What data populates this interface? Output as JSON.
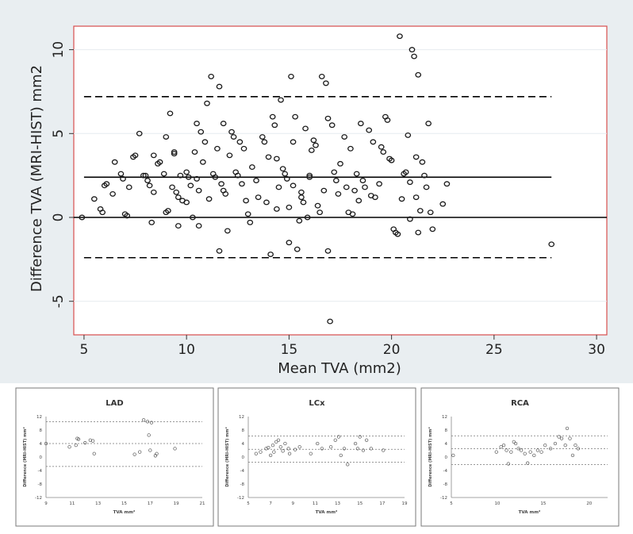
{
  "chart_data": [
    {
      "type": "scatter",
      "title": "",
      "xlabel": "Mean TVA (mm2)",
      "ylabel": "Difference TVA (MRI-HIST) mm2",
      "xlim": [
        4.5,
        30.5
      ],
      "ylim": [
        -7,
        11.4
      ],
      "xticks": [
        5,
        10,
        15,
        20,
        25,
        30
      ],
      "yticks": [
        -5,
        0,
        5,
        10
      ],
      "hlines": {
        "zero": 0,
        "mean": 2.4,
        "upper": 7.2,
        "lower": -2.4
      },
      "grid": true,
      "legend": "none",
      "colors": {
        "background": "#e9eef1",
        "plot_bg": "#ffffff",
        "border": "#d84e4e",
        "points": "#1a1a1a",
        "lines": "#000000"
      },
      "points": [
        {
          "x": 4.9,
          "y": 0.0
        },
        {
          "x": 5.5,
          "y": 1.1
        },
        {
          "x": 5.8,
          "y": 0.5
        },
        {
          "x": 5.9,
          "y": 0.3
        },
        {
          "x": 6.0,
          "y": 1.9
        },
        {
          "x": 6.1,
          "y": 2.0
        },
        {
          "x": 6.4,
          "y": 1.4
        },
        {
          "x": 6.5,
          "y": 3.3
        },
        {
          "x": 6.8,
          "y": 2.6
        },
        {
          "x": 6.9,
          "y": 2.3
        },
        {
          "x": 7.0,
          "y": 0.2
        },
        {
          "x": 7.1,
          "y": 0.1
        },
        {
          "x": 7.2,
          "y": 1.8
        },
        {
          "x": 7.4,
          "y": 3.6
        },
        {
          "x": 7.5,
          "y": 3.7
        },
        {
          "x": 7.7,
          "y": 5.0
        },
        {
          "x": 7.9,
          "y": 2.5
        },
        {
          "x": 8.0,
          "y": 2.5
        },
        {
          "x": 8.1,
          "y": 2.2
        },
        {
          "x": 8.2,
          "y": 1.9
        },
        {
          "x": 8.3,
          "y": -0.3
        },
        {
          "x": 8.4,
          "y": 1.5
        },
        {
          "x": 8.4,
          "y": 3.7
        },
        {
          "x": 8.6,
          "y": 3.2
        },
        {
          "x": 8.7,
          "y": 3.3
        },
        {
          "x": 8.9,
          "y": 2.6
        },
        {
          "x": 9.0,
          "y": 4.8
        },
        {
          "x": 9.0,
          "y": 0.3
        },
        {
          "x": 9.1,
          "y": 0.4
        },
        {
          "x": 9.2,
          "y": 6.2
        },
        {
          "x": 9.3,
          "y": 1.8
        },
        {
          "x": 9.4,
          "y": 3.9
        },
        {
          "x": 9.4,
          "y": 3.8
        },
        {
          "x": 9.5,
          "y": 1.5
        },
        {
          "x": 9.6,
          "y": -0.5
        },
        {
          "x": 9.6,
          "y": 1.2
        },
        {
          "x": 9.7,
          "y": 2.5
        },
        {
          "x": 9.8,
          "y": 1.0
        },
        {
          "x": 10.0,
          "y": 2.7
        },
        {
          "x": 10.0,
          "y": 0.9
        },
        {
          "x": 10.1,
          "y": 2.4
        },
        {
          "x": 10.2,
          "y": 1.9
        },
        {
          "x": 10.3,
          "y": 0.0
        },
        {
          "x": 10.4,
          "y": 3.9
        },
        {
          "x": 10.5,
          "y": 5.6
        },
        {
          "x": 10.5,
          "y": 2.3
        },
        {
          "x": 10.6,
          "y": 1.6
        },
        {
          "x": 10.6,
          "y": -0.5
        },
        {
          "x": 10.7,
          "y": 5.1
        },
        {
          "x": 10.8,
          "y": 3.3
        },
        {
          "x": 10.9,
          "y": 4.5
        },
        {
          "x": 11.0,
          "y": 6.8
        },
        {
          "x": 11.1,
          "y": 1.1
        },
        {
          "x": 11.2,
          "y": 8.4
        },
        {
          "x": 11.3,
          "y": 2.6
        },
        {
          "x": 11.4,
          "y": 2.4
        },
        {
          "x": 11.5,
          "y": 4.1
        },
        {
          "x": 11.6,
          "y": 7.8
        },
        {
          "x": 11.6,
          "y": -2.0
        },
        {
          "x": 11.7,
          "y": 2.0
        },
        {
          "x": 11.8,
          "y": 5.6
        },
        {
          "x": 11.8,
          "y": 1.6
        },
        {
          "x": 11.9,
          "y": 1.4
        },
        {
          "x": 12.0,
          "y": -0.8
        },
        {
          "x": 12.1,
          "y": 3.7
        },
        {
          "x": 12.2,
          "y": 5.1
        },
        {
          "x": 12.3,
          "y": 4.8
        },
        {
          "x": 12.4,
          "y": 2.7
        },
        {
          "x": 12.5,
          "y": 2.5
        },
        {
          "x": 12.6,
          "y": 4.5
        },
        {
          "x": 12.7,
          "y": 2.0
        },
        {
          "x": 12.8,
          "y": 4.1
        },
        {
          "x": 12.9,
          "y": 1.0
        },
        {
          "x": 13.0,
          "y": 0.2
        },
        {
          "x": 13.1,
          "y": -0.3
        },
        {
          "x": 13.2,
          "y": 3.0
        },
        {
          "x": 13.4,
          "y": 2.2
        },
        {
          "x": 13.5,
          "y": 1.2
        },
        {
          "x": 13.7,
          "y": 4.8
        },
        {
          "x": 13.8,
          "y": 4.5
        },
        {
          "x": 13.9,
          "y": 0.9
        },
        {
          "x": 14.0,
          "y": 3.6
        },
        {
          "x": 14.1,
          "y": -2.2
        },
        {
          "x": 14.2,
          "y": 6.0
        },
        {
          "x": 14.3,
          "y": 5.5
        },
        {
          "x": 14.4,
          "y": 3.5
        },
        {
          "x": 14.4,
          "y": 0.5
        },
        {
          "x": 14.5,
          "y": 1.8
        },
        {
          "x": 14.6,
          "y": 7.0
        },
        {
          "x": 14.7,
          "y": 2.9
        },
        {
          "x": 14.8,
          "y": 2.6
        },
        {
          "x": 14.9,
          "y": 2.3
        },
        {
          "x": 15.0,
          "y": -1.5
        },
        {
          "x": 15.0,
          "y": 0.6
        },
        {
          "x": 15.1,
          "y": 8.4
        },
        {
          "x": 15.2,
          "y": 4.5
        },
        {
          "x": 15.2,
          "y": 1.9
        },
        {
          "x": 15.3,
          "y": 6.0
        },
        {
          "x": 15.4,
          "y": -1.9
        },
        {
          "x": 15.5,
          "y": -0.2
        },
        {
          "x": 15.6,
          "y": 1.5
        },
        {
          "x": 15.6,
          "y": 1.2
        },
        {
          "x": 15.7,
          "y": 0.9
        },
        {
          "x": 15.8,
          "y": 5.3
        },
        {
          "x": 15.9,
          "y": 0.0
        },
        {
          "x": 16.0,
          "y": 2.5
        },
        {
          "x": 16.0,
          "y": 2.4
        },
        {
          "x": 16.1,
          "y": 4.0
        },
        {
          "x": 16.2,
          "y": 4.6
        },
        {
          "x": 16.3,
          "y": 4.3
        },
        {
          "x": 16.4,
          "y": 0.7
        },
        {
          "x": 16.5,
          "y": 0.3
        },
        {
          "x": 16.6,
          "y": 8.4
        },
        {
          "x": 16.7,
          "y": 1.6
        },
        {
          "x": 16.8,
          "y": 8.0
        },
        {
          "x": 16.9,
          "y": 5.9
        },
        {
          "x": 16.9,
          "y": -2.0
        },
        {
          "x": 17.0,
          "y": -6.2
        },
        {
          "x": 17.1,
          "y": 5.5
        },
        {
          "x": 17.2,
          "y": 2.7
        },
        {
          "x": 17.3,
          "y": 2.2
        },
        {
          "x": 17.4,
          "y": 1.4
        },
        {
          "x": 17.5,
          "y": 3.2
        },
        {
          "x": 17.7,
          "y": 4.8
        },
        {
          "x": 17.8,
          "y": 1.8
        },
        {
          "x": 17.9,
          "y": 0.3
        },
        {
          "x": 18.0,
          "y": 4.1
        },
        {
          "x": 18.1,
          "y": 0.2
        },
        {
          "x": 18.2,
          "y": 1.6
        },
        {
          "x": 18.3,
          "y": 2.6
        },
        {
          "x": 18.4,
          "y": 1.0
        },
        {
          "x": 18.5,
          "y": 5.6
        },
        {
          "x": 18.6,
          "y": 2.2
        },
        {
          "x": 18.7,
          "y": 1.8
        },
        {
          "x": 18.9,
          "y": 5.2
        },
        {
          "x": 19.0,
          "y": 1.3
        },
        {
          "x": 19.1,
          "y": 4.5
        },
        {
          "x": 19.2,
          "y": 1.2
        },
        {
          "x": 19.4,
          "y": 2.0
        },
        {
          "x": 19.5,
          "y": 4.2
        },
        {
          "x": 19.6,
          "y": 3.9
        },
        {
          "x": 19.7,
          "y": 6.0
        },
        {
          "x": 19.8,
          "y": 5.8
        },
        {
          "x": 19.9,
          "y": 3.5
        },
        {
          "x": 20.0,
          "y": 3.4
        },
        {
          "x": 20.1,
          "y": -0.7
        },
        {
          "x": 20.2,
          "y": -0.9
        },
        {
          "x": 20.3,
          "y": -1.0
        },
        {
          "x": 20.4,
          "y": 10.8
        },
        {
          "x": 20.5,
          "y": 1.1
        },
        {
          "x": 20.6,
          "y": 2.6
        },
        {
          "x": 20.7,
          "y": 2.7
        },
        {
          "x": 20.8,
          "y": 4.9
        },
        {
          "x": 20.9,
          "y": 2.1
        },
        {
          "x": 21.0,
          "y": 10.0
        },
        {
          "x": 21.1,
          "y": 9.6
        },
        {
          "x": 21.2,
          "y": 3.6
        },
        {
          "x": 21.3,
          "y": 8.5
        },
        {
          "x": 21.4,
          "y": 0.4
        },
        {
          "x": 21.5,
          "y": 3.3
        },
        {
          "x": 21.6,
          "y": 2.5
        },
        {
          "x": 21.7,
          "y": 1.8
        },
        {
          "x": 21.8,
          "y": 5.6
        },
        {
          "x": 21.9,
          "y": 0.3
        },
        {
          "x": 22.0,
          "y": -0.7
        },
        {
          "x": 22.5,
          "y": 0.8
        },
        {
          "x": 22.7,
          "y": 2.0
        },
        {
          "x": 20.9,
          "y": -0.1
        },
        {
          "x": 21.2,
          "y": 1.2
        },
        {
          "x": 21.3,
          "y": -0.9
        },
        {
          "x": 27.8,
          "y": -1.6
        }
      ]
    },
    {
      "type": "scatter",
      "title": "LAD",
      "xlabel": "TVA mm²",
      "ylabel": "Difference (MRI-HIST) mm²",
      "xlim": [
        9,
        21
      ],
      "ylim": [
        -12,
        12
      ],
      "xticks": [
        9,
        11,
        13,
        15,
        17,
        19,
        21
      ],
      "yticks": [
        -12,
        -8,
        -4,
        0,
        4,
        8,
        12
      ],
      "hlines": {
        "mean": 4.0,
        "upper": 10.5,
        "lower": -2.8
      },
      "points": [
        {
          "x": 9.0,
          "y": 4.0
        },
        {
          "x": 10.8,
          "y": 3.0
        },
        {
          "x": 11.3,
          "y": 3.5
        },
        {
          "x": 11.4,
          "y": 5.5
        },
        {
          "x": 11.5,
          "y": 5.3
        },
        {
          "x": 12.0,
          "y": 4.2
        },
        {
          "x": 12.4,
          "y": 5.0
        },
        {
          "x": 12.6,
          "y": 4.8
        },
        {
          "x": 12.7,
          "y": 1.0
        },
        {
          "x": 15.8,
          "y": 0.8
        },
        {
          "x": 16.2,
          "y": 1.5
        },
        {
          "x": 16.5,
          "y": 11.0
        },
        {
          "x": 16.8,
          "y": 10.5
        },
        {
          "x": 16.9,
          "y": 6.5
        },
        {
          "x": 17.0,
          "y": 2.0
        },
        {
          "x": 17.1,
          "y": 10.2
        },
        {
          "x": 17.4,
          "y": 0.4
        },
        {
          "x": 17.5,
          "y": 1.0
        },
        {
          "x": 18.9,
          "y": 2.5
        }
      ]
    },
    {
      "type": "scatter",
      "title": "LCx",
      "xlabel": "TVA mm²",
      "ylabel": "Difference (MRI-HIST) mm²",
      "xlim": [
        5,
        19
      ],
      "ylim": [
        -12,
        12
      ],
      "xticks": [
        5,
        7,
        9,
        11,
        13,
        15,
        17,
        19
      ],
      "yticks": [
        -12,
        -8,
        -4,
        0,
        4,
        8,
        12
      ],
      "hlines": {
        "mean": 2.3,
        "upper": 6.2,
        "lower": -1.5
      },
      "points": [
        {
          "x": 5.7,
          "y": 1.0
        },
        {
          "x": 6.1,
          "y": 1.5
        },
        {
          "x": 6.6,
          "y": 2.5
        },
        {
          "x": 6.8,
          "y": 2.8
        },
        {
          "x": 7.0,
          "y": 0.5
        },
        {
          "x": 7.2,
          "y": 3.5
        },
        {
          "x": 7.3,
          "y": 1.5
        },
        {
          "x": 7.5,
          "y": 4.5
        },
        {
          "x": 7.7,
          "y": 5.0
        },
        {
          "x": 7.9,
          "y": 3.0
        },
        {
          "x": 8.1,
          "y": 1.8
        },
        {
          "x": 8.3,
          "y": 4.0
        },
        {
          "x": 8.6,
          "y": 2.5
        },
        {
          "x": 8.7,
          "y": 1.0
        },
        {
          "x": 9.2,
          "y": 2.2
        },
        {
          "x": 9.6,
          "y": 3.0
        },
        {
          "x": 10.6,
          "y": 1.0
        },
        {
          "x": 11.2,
          "y": 4.0
        },
        {
          "x": 11.6,
          "y": 2.5
        },
        {
          "x": 12.4,
          "y": 3.0
        },
        {
          "x": 12.8,
          "y": 5.0
        },
        {
          "x": 13.1,
          "y": 6.0
        },
        {
          "x": 13.3,
          "y": 0.5
        },
        {
          "x": 13.6,
          "y": 2.5
        },
        {
          "x": 13.9,
          "y": -2.2
        },
        {
          "x": 14.6,
          "y": 4.0
        },
        {
          "x": 14.8,
          "y": 2.5
        },
        {
          "x": 15.0,
          "y": 6.0
        },
        {
          "x": 15.3,
          "y": 2.0
        },
        {
          "x": 15.6,
          "y": 5.0
        },
        {
          "x": 16.0,
          "y": 2.5
        },
        {
          "x": 17.1,
          "y": 2.0
        }
      ]
    },
    {
      "type": "scatter",
      "title": "RCA",
      "xlabel": "TVA mm²",
      "ylabel": "Difference (MRI-HIST) mm²",
      "xlim": [
        5,
        22
      ],
      "ylim": [
        -12,
        12
      ],
      "xticks": [
        5,
        10,
        15,
        20
      ],
      "yticks": [
        -12,
        -8,
        -4,
        0,
        4,
        8,
        12
      ],
      "hlines": {
        "mean": 2.5,
        "upper": 6.3,
        "lower": -2.2
      },
      "points": [
        {
          "x": 5.2,
          "y": 0.5
        },
        {
          "x": 9.9,
          "y": 1.5
        },
        {
          "x": 10.4,
          "y": 3.0
        },
        {
          "x": 10.7,
          "y": 3.5
        },
        {
          "x": 11.0,
          "y": 2.0
        },
        {
          "x": 11.2,
          "y": -2.0
        },
        {
          "x": 11.5,
          "y": 1.5
        },
        {
          "x": 11.8,
          "y": 4.5
        },
        {
          "x": 12.0,
          "y": 4.0
        },
        {
          "x": 12.3,
          "y": 2.5
        },
        {
          "x": 12.6,
          "y": 2.0
        },
        {
          "x": 13.0,
          "y": 1.0
        },
        {
          "x": 13.3,
          "y": -1.8
        },
        {
          "x": 13.6,
          "y": 1.5
        },
        {
          "x": 14.0,
          "y": 0.5
        },
        {
          "x": 14.4,
          "y": 2.0
        },
        {
          "x": 14.8,
          "y": 1.5
        },
        {
          "x": 15.2,
          "y": 3.5
        },
        {
          "x": 15.8,
          "y": 2.5
        },
        {
          "x": 16.3,
          "y": 4.0
        },
        {
          "x": 16.7,
          "y": 6.0
        },
        {
          "x": 17.0,
          "y": 5.5
        },
        {
          "x": 17.4,
          "y": 3.5
        },
        {
          "x": 17.6,
          "y": 8.5
        },
        {
          "x": 17.9,
          "y": 5.5
        },
        {
          "x": 18.2,
          "y": 0.5
        },
        {
          "x": 18.5,
          "y": 3.5
        },
        {
          "x": 18.8,
          "y": 2.5
        }
      ]
    }
  ]
}
